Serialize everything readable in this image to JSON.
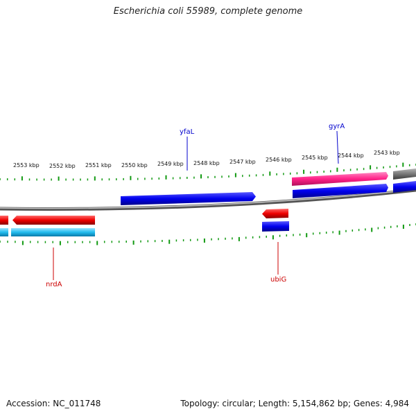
{
  "title": "Escherichia coli 55989, complete genome",
  "footer": {
    "accession": "Accession: NC_011748",
    "summary": "Topology: circular; Length: 5,154,862 bp; Genes: 4,984"
  },
  "colors": {
    "forward_cds": "#0000ee",
    "reverse_cds": "#ee0000",
    "highlight_cds": "#ff2288",
    "reverse_rna": "#22bbee",
    "other": "#777777",
    "backbone": "#888888",
    "ticks": "#119911",
    "forward_label": "#0000cc",
    "reverse_label": "#cc0000"
  },
  "tick_labels": [
    "2553 kbp",
    "2552 kbp",
    "2551 kbp",
    "2550 kbp",
    "2549 kbp",
    "2548 kbp",
    "2547 kbp",
    "2546 kbp",
    "2545 kbp",
    "2544 kbp",
    "2543 kbp"
  ],
  "gene_labels": {
    "yfaL": "yfaL",
    "gyrA": "gyrA",
    "nrdA": "nrdA",
    "ubiG": "ubiG"
  }
}
